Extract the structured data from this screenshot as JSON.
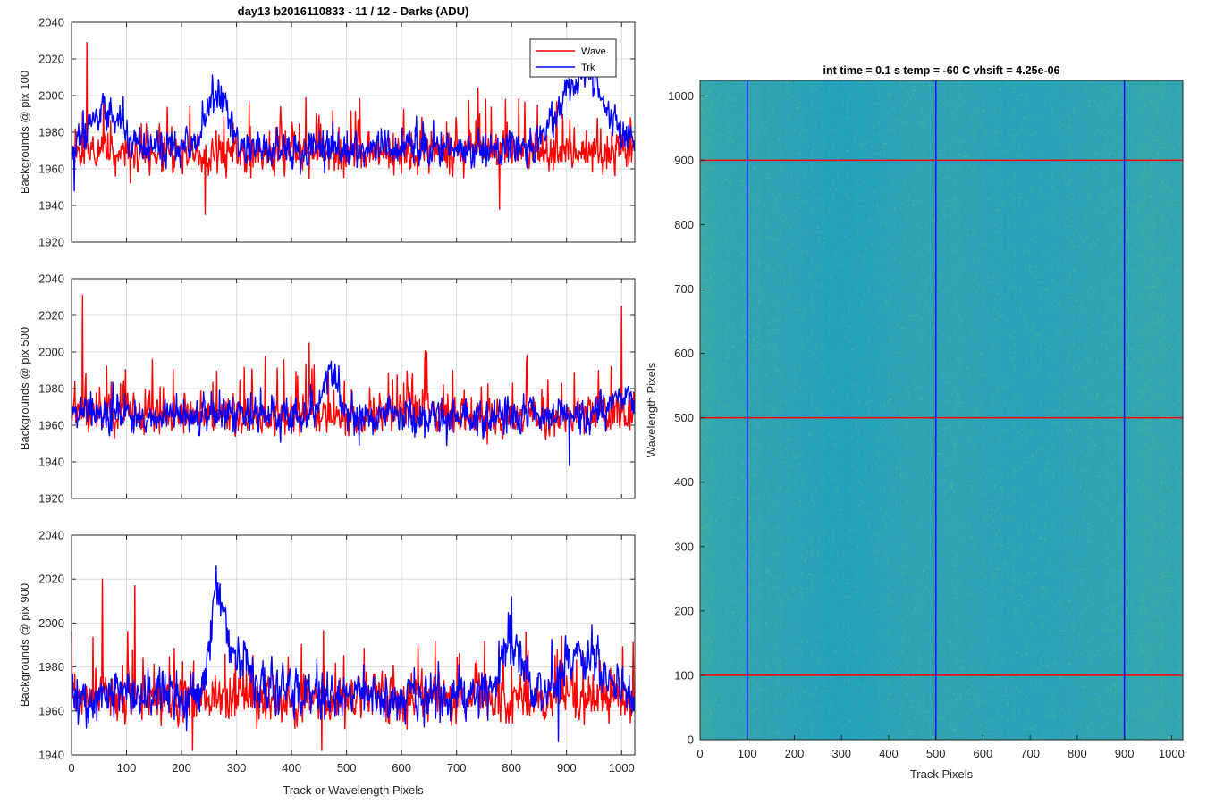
{
  "figure": {
    "title": "day13 b2016110833 - 11 / 12 - Darks (ADU)",
    "xlabel": "Track or Wavelength Pixels"
  },
  "chart_data": [
    {
      "type": "line",
      "ylabel": "Backgrounds @ pix 100",
      "xlim": [
        0,
        1024
      ],
      "ylim": [
        1920,
        2040
      ],
      "xticks": [],
      "yticks": [
        1920,
        1940,
        1960,
        1980,
        2000,
        2020,
        2040
      ],
      "grid": true,
      "legend": {
        "position": "top-right",
        "entries": [
          "Wave",
          "Trk"
        ]
      },
      "series": [
        {
          "name": "Wave",
          "color": "#ff0000",
          "baseline": 1969,
          "noise": 5,
          "spike_rate": 0.07,
          "spike_amp": 22,
          "seed": 11,
          "features": [],
          "key_points": [
            [
              28,
              2029
            ],
            [
              243,
              1935
            ],
            [
              778,
              1938
            ]
          ]
        },
        {
          "name": "Trk",
          "color": "#0000ff",
          "baseline": 1971,
          "noise": 4.5,
          "spike_rate": 0.02,
          "spike_amp": 10,
          "seed": 12,
          "features": [
            [
              60,
              30,
              20
            ],
            [
              265,
              20,
              30
            ],
            [
              930,
              40,
              40
            ]
          ],
          "key_points": [
            [
              935,
              2013
            ],
            [
              5,
              1948
            ]
          ]
        }
      ]
    },
    {
      "type": "line",
      "ylabel": "Backgrounds @ pix 500",
      "xlim": [
        0,
        1024
      ],
      "ylim": [
        1920,
        2040
      ],
      "xticks": [],
      "yticks": [
        1920,
        1940,
        1960,
        1980,
        2000,
        2020,
        2040
      ],
      "grid": true,
      "series": [
        {
          "name": "Wave",
          "color": "#ff0000",
          "baseline": 1966,
          "noise": 5,
          "spike_rate": 0.08,
          "spike_amp": 22,
          "seed": 21,
          "features": [],
          "key_points": [
            [
              20,
              2031
            ],
            [
              1000,
              2025
            ]
          ]
        },
        {
          "name": "Trk",
          "color": "#0000ff",
          "baseline": 1965,
          "noise": 4.5,
          "spike_rate": 0.02,
          "spike_amp": 10,
          "seed": 22,
          "features": [
            [
              470,
              12,
              25
            ],
            [
              1000,
              25,
              12
            ]
          ],
          "key_points": [
            [
              472,
              1995
            ],
            [
              905,
              1938
            ]
          ]
        }
      ]
    },
    {
      "type": "line",
      "ylabel": "Backgrounds @ pix 900",
      "xlim": [
        0,
        1024
      ],
      "ylim": [
        1940,
        2040
      ],
      "xticks": [
        0,
        100,
        200,
        300,
        400,
        500,
        600,
        700,
        800,
        900,
        1000
      ],
      "yticks": [
        1940,
        1960,
        1980,
        2000,
        2020,
        2040
      ],
      "grid": true,
      "series": [
        {
          "name": "Wave",
          "color": "#ff0000",
          "baseline": 1966,
          "noise": 5,
          "spike_rate": 0.07,
          "spike_amp": 22,
          "seed": 31,
          "features": [],
          "key_points": [
            [
              56,
              2020
            ],
            [
              115,
              2017
            ],
            [
              220,
              1942
            ],
            [
              455,
              1942
            ]
          ]
        },
        {
          "name": "Trk",
          "color": "#0000ff",
          "baseline": 1967,
          "noise": 5,
          "spike_rate": 0.02,
          "spike_amp": 10,
          "seed": 32,
          "features": [
            [
              265,
              12,
              38
            ],
            [
              300,
              30,
              15
            ],
            [
              800,
              18,
              25
            ],
            [
              930,
              35,
              20
            ]
          ],
          "key_points": [
            [
              263,
              2026
            ],
            [
              800,
              2012
            ],
            [
              885,
              1946
            ]
          ]
        }
      ]
    },
    {
      "type": "heatmap",
      "title": "int time = 0.1 s   temp = -60 C   vhsift = 4.25e-06",
      "xlabel": "Track Pixels",
      "ylabel": "Wavelength Pixels",
      "xlim": [
        0,
        1024
      ],
      "ylim": [
        0,
        1024
      ],
      "xticks": [
        0,
        100,
        200,
        300,
        400,
        500,
        600,
        700,
        800,
        900,
        1000
      ],
      "yticks": [
        0,
        100,
        200,
        300,
        400,
        500,
        600,
        700,
        800,
        900,
        1000
      ],
      "colormap": "parula",
      "base_color": "#1f9fc0",
      "speckle_color": "#8cc668",
      "marker_lines": {
        "vertical": {
          "color": "#0000ff",
          "values": [
            100,
            500,
            900
          ]
        },
        "horizontal": {
          "color": "#ff0000",
          "values": [
            100,
            500,
            900
          ]
        }
      }
    }
  ]
}
